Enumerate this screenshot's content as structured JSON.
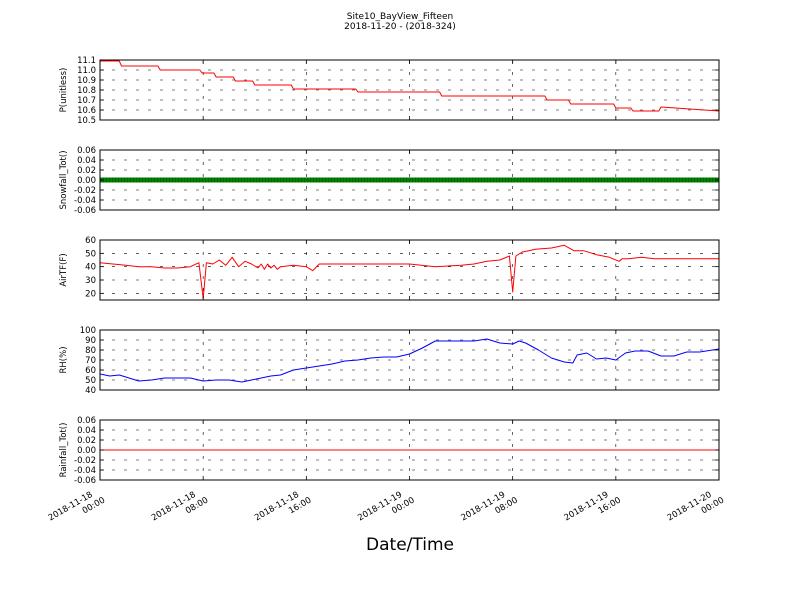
{
  "figure": {
    "title": "Site10_BayView_Fifteen",
    "subtitle": "2018-11-20 - (2018-324)",
    "xlabel": "Date/Time"
  },
  "chart_data": {
    "type": "line",
    "x_axis": {
      "range": [
        "2018-11-18 00:00",
        "2018-11-20 00:00"
      ],
      "ticks": [
        "2018-11-18 00:00",
        "2018-11-18 08:00",
        "2018-11-18 16:00",
        "2018-11-19 00:00",
        "2018-11-19 08:00",
        "2018-11-19 16:00",
        "2018-11-20 00:00"
      ],
      "tick_labels": [
        [
          "2018-11-18",
          "00:00"
        ],
        [
          "2018-11-18",
          "08:00"
        ],
        [
          "2018-11-18",
          "16:00"
        ],
        [
          "2018-11-19",
          "00:00"
        ],
        [
          "2018-11-19",
          "08:00"
        ],
        [
          "2018-11-19",
          "16:00"
        ],
        [
          "2018-11-20",
          "00:00"
        ]
      ],
      "grid_x": "dashed"
    },
    "panels": [
      {
        "name": "p",
        "ylabel": "P(unitless)",
        "ylim": [
          10.5,
          11.1
        ],
        "yticks": [
          10.5,
          10.6,
          10.7,
          10.8,
          10.9,
          11.0,
          11.1
        ],
        "ytick_labels": [
          "10.5",
          "10.6",
          "10.7",
          "10.8",
          "10.9",
          "11.0",
          "11.1"
        ],
        "color": "#ff0000",
        "style": "line",
        "grid": "dashed",
        "series": {
          "x": [
            "2018-11-18 00:00",
            "2018-11-18 01:30",
            "2018-11-18 01:40",
            "2018-11-18 04:30",
            "2018-11-18 04:40",
            "2018-11-18 07:45",
            "2018-11-18 07:55",
            "2018-11-18 08:50",
            "2018-11-18 09:00",
            "2018-11-18 10:20",
            "2018-11-18 10:30",
            "2018-11-18 11:50",
            "2018-11-18 12:00",
            "2018-11-18 14:50",
            "2018-11-18 15:00",
            "2018-11-18 19:50",
            "2018-11-18 20:00",
            "2018-11-19 00:00",
            "2018-11-19 02:20",
            "2018-11-19 02:30",
            "2018-11-19 08:45",
            "2018-11-19 09:00",
            "2018-11-19 10:30",
            "2018-11-19 10:40",
            "2018-11-19 12:20",
            "2018-11-19 12:30",
            "2018-11-19 15:50",
            "2018-11-19 16:00",
            "2018-11-19 17:10",
            "2018-11-19 17:20",
            "2018-11-19 19:20",
            "2018-11-19 19:30",
            "2018-11-20 00:00"
          ],
          "y": [
            11.09,
            11.09,
            11.04,
            11.04,
            11.0,
            11.0,
            10.97,
            10.97,
            10.93,
            10.93,
            10.89,
            10.89,
            10.85,
            10.85,
            10.81,
            10.81,
            10.78,
            10.78,
            10.78,
            10.74,
            10.74,
            10.74,
            10.74,
            10.7,
            10.7,
            10.66,
            10.66,
            10.62,
            10.62,
            10.59,
            10.59,
            10.63,
            10.59
          ]
        }
      },
      {
        "name": "snowfall",
        "ylabel": "Snowfall_Tot()",
        "ylim": [
          -0.06,
          0.06
        ],
        "yticks": [
          -0.06,
          -0.04,
          -0.02,
          0.0,
          0.02,
          0.04,
          0.06
        ],
        "ytick_labels": [
          "-0.06",
          "-0.04",
          "-0.02",
          "0.00",
          "0.02",
          "0.04",
          "0.06"
        ],
        "color": "#008000",
        "style": "thick-markers",
        "grid": "dashed",
        "series": {
          "x": [
            "2018-11-18 00:00",
            "2018-11-20 00:00"
          ],
          "y": [
            0.0,
            0.0
          ]
        }
      },
      {
        "name": "airtf",
        "ylabel": "AirTF(F)",
        "ylim": [
          15,
          60
        ],
        "yticks": [
          20,
          30,
          40,
          50,
          60
        ],
        "ytick_labels": [
          "20",
          "30",
          "40",
          "50",
          "60"
        ],
        "color": "#ff0000",
        "style": "line",
        "grid": "dashed",
        "series": {
          "x": [
            "2018-11-18 00:00",
            "2018-11-18 01:00",
            "2018-11-18 02:00",
            "2018-11-18 03:00",
            "2018-11-18 04:00",
            "2018-11-18 05:00",
            "2018-11-18 06:00",
            "2018-11-18 07:00",
            "2018-11-18 07:40",
            "2018-11-18 08:00",
            "2018-11-18 08:15",
            "2018-11-18 08:45",
            "2018-11-18 09:15",
            "2018-11-18 09:45",
            "2018-11-18 10:15",
            "2018-11-18 10:45",
            "2018-11-18 11:15",
            "2018-11-18 11:45",
            "2018-11-18 12:15",
            "2018-11-18 12:30",
            "2018-11-18 12:45",
            "2018-11-18 13:00",
            "2018-11-18 13:15",
            "2018-11-18 13:30",
            "2018-11-18 13:45",
            "2018-11-18 14:00",
            "2018-11-18 15:00",
            "2018-11-18 16:00",
            "2018-11-18 16:30",
            "2018-11-18 17:00",
            "2018-11-18 18:00",
            "2018-11-18 20:00",
            "2018-11-18 22:00",
            "2018-11-19 00:00",
            "2018-11-19 02:00",
            "2018-11-19 04:00",
            "2018-11-19 05:00",
            "2018-11-19 06:00",
            "2018-11-19 07:00",
            "2018-11-19 07:45",
            "2018-11-19 08:00",
            "2018-11-19 08:15",
            "2018-11-19 08:45",
            "2018-11-19 09:15",
            "2018-11-19 09:45",
            "2018-11-19 11:00",
            "2018-11-19 12:00",
            "2018-11-19 12:45",
            "2018-11-19 13:30",
            "2018-11-19 14:30",
            "2018-11-19 15:30",
            "2018-11-19 16:15",
            "2018-11-19 16:30",
            "2018-11-19 17:00",
            "2018-11-19 18:00",
            "2018-11-19 19:00",
            "2018-11-19 20:30",
            "2018-11-19 22:00",
            "2018-11-20 00:00"
          ],
          "y": [
            43,
            42,
            41,
            40,
            40,
            39,
            39,
            40,
            43,
            16,
            43,
            42,
            45,
            41,
            47,
            40,
            44,
            42,
            39,
            42,
            38,
            42,
            39,
            41,
            38,
            40,
            41,
            40,
            37,
            42,
            42,
            42,
            42,
            42,
            40,
            41,
            42,
            44,
            45,
            48,
            21,
            48,
            51,
            52,
            53,
            54,
            56,
            52,
            52,
            49,
            47,
            44,
            46,
            46,
            47,
            46,
            46,
            46,
            46
          ]
        }
      },
      {
        "name": "rh",
        "ylabel": "RH(%)",
        "ylim": [
          40,
          100
        ],
        "yticks": [
          40,
          50,
          60,
          70,
          80,
          90,
          100
        ],
        "ytick_labels": [
          "40",
          "50",
          "60",
          "70",
          "80",
          "90",
          "100"
        ],
        "color": "#0000ff",
        "style": "line",
        "grid": "dashed",
        "series": {
          "x": [
            "2018-11-18 00:00",
            "2018-11-18 00:45",
            "2018-11-18 01:30",
            "2018-11-18 02:15",
            "2018-11-18 03:00",
            "2018-11-18 04:00",
            "2018-11-18 05:00",
            "2018-11-18 06:00",
            "2018-11-18 07:00",
            "2018-11-18 08:00",
            "2018-11-18 09:00",
            "2018-11-18 10:00",
            "2018-11-18 11:00",
            "2018-11-18 11:45",
            "2018-11-18 12:30",
            "2018-11-18 13:15",
            "2018-11-18 14:00",
            "2018-11-18 15:00",
            "2018-11-18 16:00",
            "2018-11-18 17:00",
            "2018-11-18 18:00",
            "2018-11-18 19:00",
            "2018-11-18 20:00",
            "2018-11-18 21:00",
            "2018-11-18 22:00",
            "2018-11-18 23:00",
            "2018-11-19 00:00",
            "2018-11-19 01:00",
            "2018-11-19 02:00",
            "2018-11-19 03:00",
            "2018-11-19 04:00",
            "2018-11-19 05:00",
            "2018-11-19 06:00",
            "2018-11-19 07:00",
            "2018-11-19 08:00",
            "2018-11-19 08:30",
            "2018-11-19 09:00",
            "2018-11-19 10:00",
            "2018-11-19 11:00",
            "2018-11-19 12:00",
            "2018-11-19 12:40",
            "2018-11-19 13:00",
            "2018-11-19 13:45",
            "2018-11-19 14:30",
            "2018-11-19 15:15",
            "2018-11-19 16:00",
            "2018-11-19 16:45",
            "2018-11-19 17:30",
            "2018-11-19 18:30",
            "2018-11-19 19:30",
            "2018-11-19 20:30",
            "2018-11-19 21:30",
            "2018-11-19 22:30",
            "2018-11-20 00:00"
          ],
          "y": [
            56,
            54,
            55,
            52,
            49,
            50,
            52,
            52,
            52,
            49,
            50,
            50,
            48,
            50,
            52,
            54,
            55,
            60,
            62,
            64,
            66,
            69,
            70,
            72,
            73,
            73,
            76,
            82,
            89,
            89,
            89,
            89,
            91,
            87,
            86,
            89,
            87,
            80,
            72,
            68,
            67,
            75,
            77,
            71,
            72,
            70,
            77,
            79,
            79,
            74,
            74,
            78,
            78,
            81
          ]
        }
      },
      {
        "name": "rainfall",
        "ylabel": "Rainfall_Tot()",
        "ylim": [
          -0.06,
          0.06
        ],
        "yticks": [
          -0.06,
          -0.04,
          -0.02,
          0.0,
          0.02,
          0.04,
          0.06
        ],
        "ytick_labels": [
          "-0.06",
          "-0.04",
          "-0.02",
          "0.00",
          "0.02",
          "0.04",
          "0.06"
        ],
        "color": "#ff0000",
        "style": "line",
        "grid": "dashed",
        "series": {
          "x": [
            "2018-11-18 00:00",
            "2018-11-20 00:00"
          ],
          "y": [
            0.0,
            0.0
          ]
        }
      }
    ]
  }
}
